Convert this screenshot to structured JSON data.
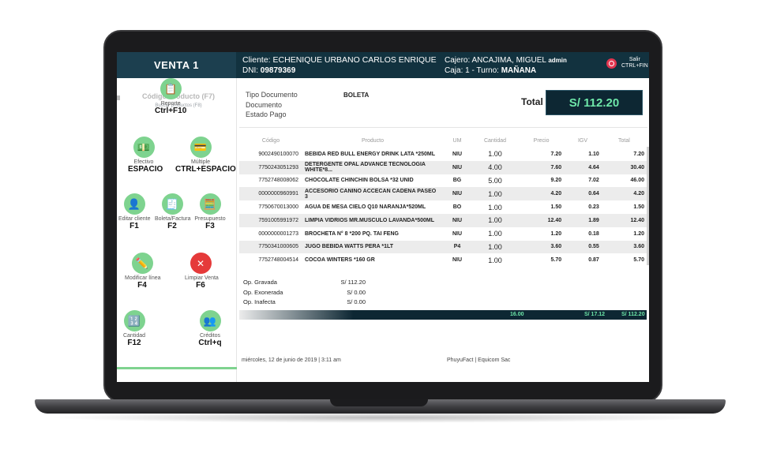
{
  "header": {
    "sale_title": "VENTA 1",
    "client_label": "Cliente: ECHENIQUE URBANO CARLOS ENRIQUE",
    "dni_label": "DNI:",
    "dni_value": "09879369",
    "cashier_label": "Cajero: ANCAJIMA, MIGUEL",
    "cashier_role": "admin",
    "register_label": "Caja: 1 - Turno:",
    "shift_value": "MAÑANA",
    "logout_label": "Salir",
    "logout_shortcut": "CTRL+FIN"
  },
  "left_panel": {
    "code_label": "Código Producto (F7)",
    "search_help": "Buscar productos (F8)",
    "actions": [
      {
        "id": "cash",
        "label": "Efectivo",
        "key": "ESPACIO",
        "icon": "cash-icon"
      },
      {
        "id": "multiple",
        "label": "Múltiple",
        "key": "CTRL+ESPACIO",
        "icon": "multiple-payment-icon"
      },
      {
        "id": "edit-client",
        "label": "Editar cliente",
        "key": "F1",
        "icon": "client-icon"
      },
      {
        "id": "receipt-invoice",
        "label": "Boleta/Factura",
        "key": "F2",
        "icon": "document-icon"
      },
      {
        "id": "budget",
        "label": "Presupuesto",
        "key": "F3",
        "icon": "calculator-icon"
      },
      {
        "id": "modify-line",
        "label": "Modificar línea",
        "key": "F4",
        "icon": "edit-icon"
      },
      {
        "id": "clear-sale",
        "label": "Limpiar Venta",
        "key": "F6",
        "icon": "close-icon"
      },
      {
        "id": "quantity",
        "label": "Cantidad",
        "key": "F12",
        "icon": "quantity-icon"
      },
      {
        "id": "report",
        "label": "Reporte",
        "key": "Ctrl+F10",
        "icon": "report-icon"
      },
      {
        "id": "credits",
        "label": "Créditos",
        "key": "Ctrl+q",
        "icon": "credits-icon"
      }
    ]
  },
  "document": {
    "type_label": "Tipo Documento",
    "doc_label": "Documento",
    "status_label": "Estado Pago",
    "type_value": "BOLETA",
    "total_label": "Total",
    "total_value": "S/ 112.20"
  },
  "table": {
    "columns": [
      "Código",
      "Producto",
      "UM",
      "Cantidad",
      "Precio",
      "IGV",
      "Total"
    ],
    "rows": [
      {
        "code": "9002490100070",
        "product": "BEBIDA RED BULL ENERGY DRINK LATA *250ML",
        "um": "NIU",
        "qty": "1.00",
        "price": "7.20",
        "igv": "1.10",
        "total": "7.20"
      },
      {
        "code": "7750243051293",
        "product": "DETERGENTE OPAL ADVANCE TECNOLOGIA WHITE*8...",
        "um": "NIU",
        "qty": "4.00",
        "price": "7.60",
        "igv": "4.64",
        "total": "30.40"
      },
      {
        "code": "7752748008062",
        "product": "CHOCOLATE CHINCHIN BOLSA *32 UNID",
        "um": "BG",
        "qty": "5.00",
        "price": "9.20",
        "igv": "7.02",
        "total": "46.00"
      },
      {
        "code": "0000000960991",
        "product": "ACCESORIO CANINO ACCECAN CADENA PASEO 3",
        "um": "NIU",
        "qty": "1.00",
        "price": "4.20",
        "igv": "0.64",
        "total": "4.20"
      },
      {
        "code": "7750670013000",
        "product": "AGUA DE MESA CIELO Q10 NARANJA*520ML",
        "um": "BO",
        "qty": "1.00",
        "price": "1.50",
        "igv": "0.23",
        "total": "1.50"
      },
      {
        "code": "7591005991972",
        "product": "LIMPIA VIDRIOS MR.MUSCULO LAVANDA*500ML",
        "um": "NIU",
        "qty": "1.00",
        "price": "12.40",
        "igv": "1.89",
        "total": "12.40"
      },
      {
        "code": "0000000001273",
        "product": "BROCHETA N° 8 *200 PQ. TAI FENG",
        "um": "NIU",
        "qty": "1.00",
        "price": "1.20",
        "igv": "0.18",
        "total": "1.20"
      },
      {
        "code": "7750341000605",
        "product": "JUGO BEBIDA WATTS PERA *1LT",
        "um": "P4",
        "qty": "1.00",
        "price": "3.60",
        "igv": "0.55",
        "total": "3.60"
      },
      {
        "code": "7752748004514",
        "product": "COCOA WINTERS *160 GR",
        "um": "NIU",
        "qty": "1.00",
        "price": "5.70",
        "igv": "0.87",
        "total": "5.70"
      }
    ]
  },
  "summary": {
    "taxed_label": "Op. Gravada",
    "taxed_value": "S/ 112.20",
    "exempt_label": "Op. Exonerada",
    "exempt_value": "S/ 0.00",
    "unaffected_label": "Op. Inafecta",
    "unaffected_value": "S/ 0.00",
    "total_qty": "16.00",
    "total_igv": "S/ 17.12",
    "total_amount": "S/ 112.20"
  },
  "footer": {
    "date": "miércoles, 12 de junio de 2019 | 3:11 am",
    "brand": "PhuyuFact | Equicom Sac"
  },
  "colors": {
    "header_bg": "#12323f",
    "accent_green": "#7ed38f",
    "total_text": "#6ee7a9",
    "clear_red": "#e53a3a"
  }
}
